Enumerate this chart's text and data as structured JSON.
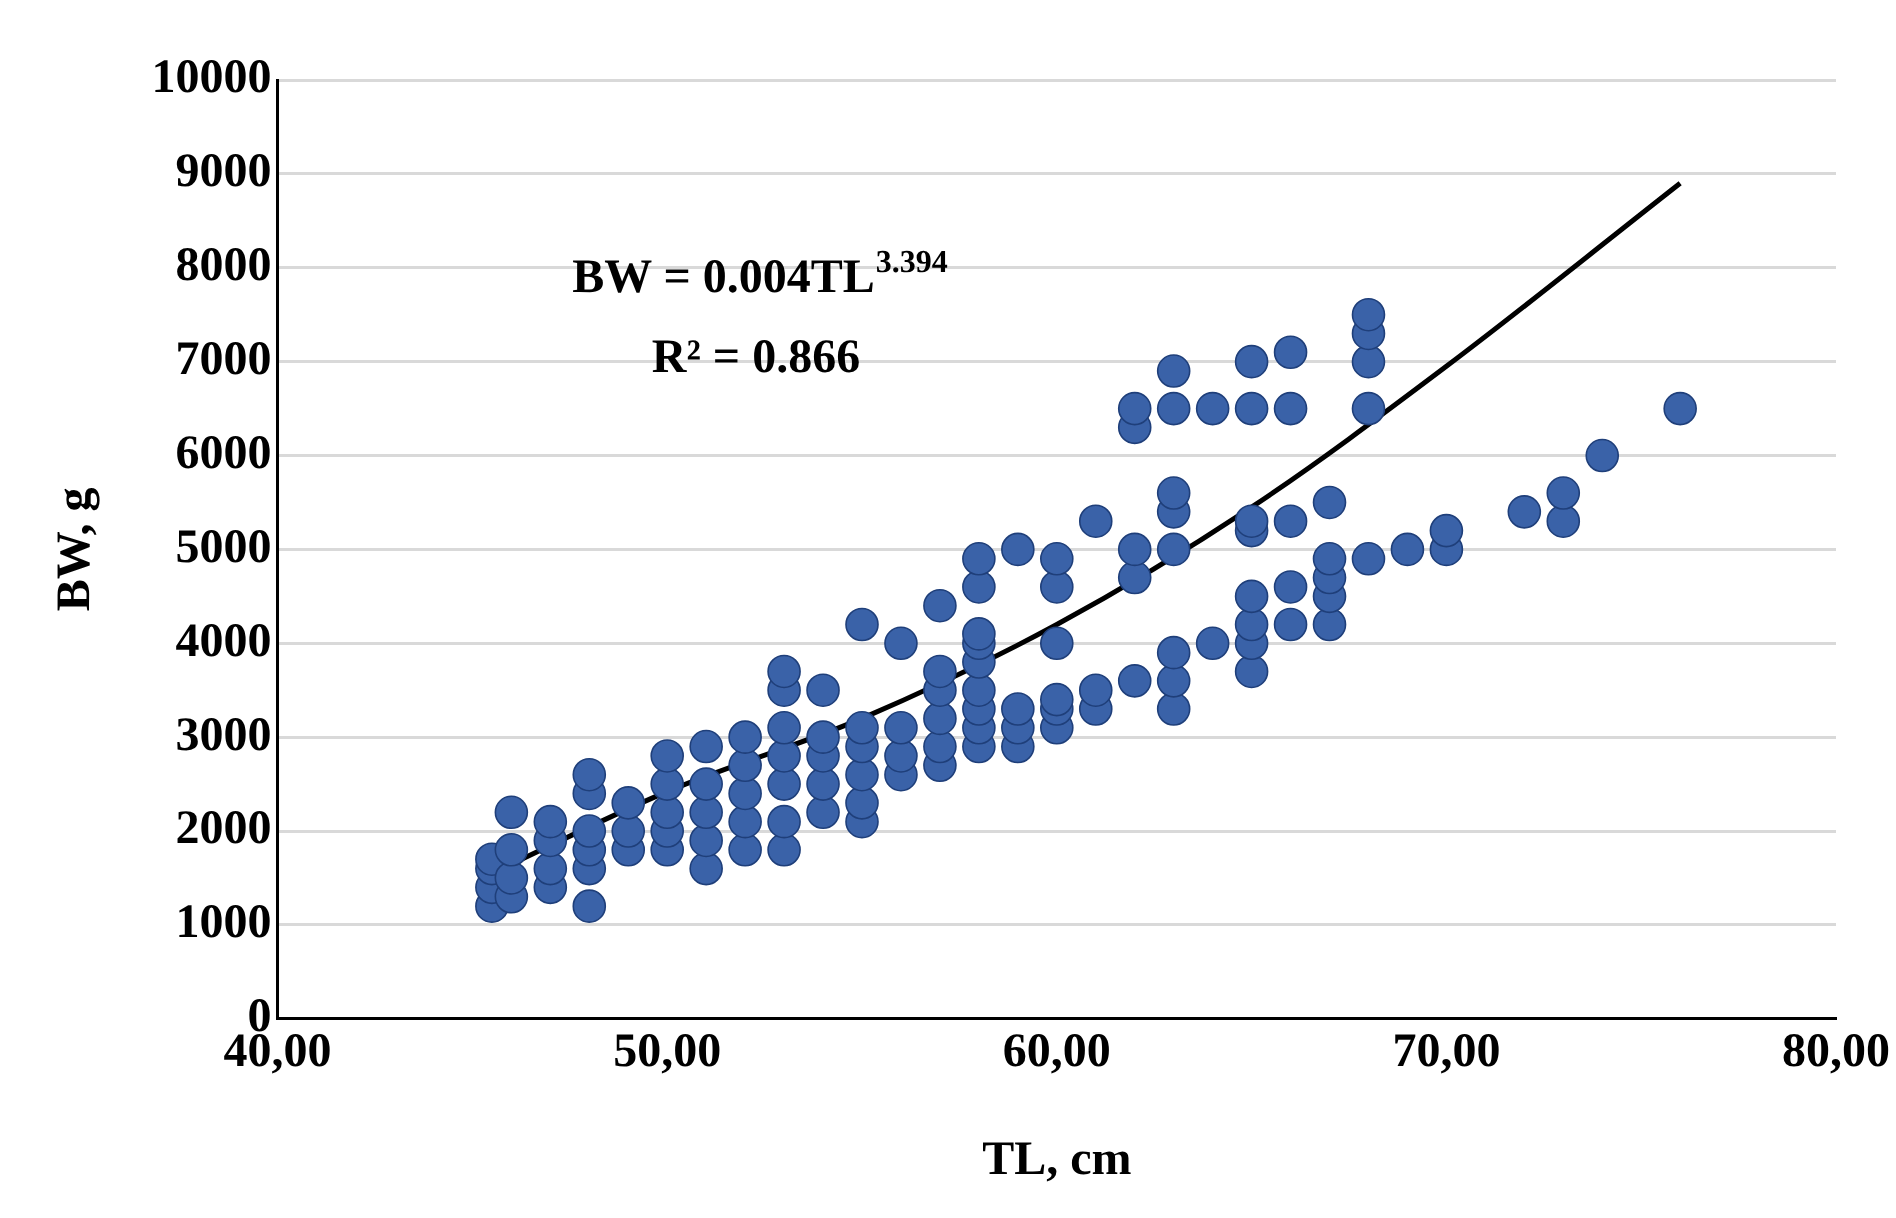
{
  "chart_data": {
    "type": "scatter",
    "xlabel": "TL, cm",
    "ylabel": "BW, g",
    "xlim": [
      40,
      80
    ],
    "xticks": [
      {
        "value": 40,
        "label": "40,00"
      },
      {
        "value": 50,
        "label": "50,00"
      },
      {
        "value": 60,
        "label": "60,00"
      },
      {
        "value": 70,
        "label": "70,00"
      },
      {
        "value": 80,
        "label": "80,00"
      }
    ],
    "ylim": [
      0,
      10000
    ],
    "yticks": [
      0,
      1000,
      2000,
      3000,
      4000,
      5000,
      6000,
      7000,
      8000,
      9000,
      10000
    ],
    "grid": "y",
    "legend": false,
    "marker": "circle",
    "annotations": [
      "BW = 0.004TL$^{3.394}$",
      "R² = 0.866"
    ],
    "series": [
      {
        "color": "#3a62a8",
        "x": [
          45.5,
          45.5,
          45.5,
          45.5,
          46,
          46,
          46,
          46,
          47,
          47,
          47,
          47,
          48,
          48,
          48,
          48,
          48,
          48,
          49,
          49,
          49,
          50,
          50,
          50,
          50,
          50,
          51,
          51,
          51,
          51,
          51,
          52,
          52,
          52,
          52,
          52,
          53,
          53,
          53,
          53,
          53,
          53,
          53,
          54,
          54,
          54,
          54,
          54,
          55,
          55,
          55,
          55,
          55,
          55,
          56,
          56,
          56,
          56,
          57,
          57,
          57,
          57,
          57,
          57,
          58,
          58,
          58,
          58,
          58,
          58,
          58,
          58,
          58,
          59,
          59,
          59,
          59,
          60,
          60,
          60,
          60,
          60,
          60,
          61,
          61,
          61,
          62,
          62,
          62,
          62,
          62,
          63,
          63,
          63,
          63,
          63,
          63,
          63,
          63,
          64,
          64,
          65,
          65,
          65,
          65,
          65,
          65,
          65,
          65,
          66,
          66,
          66,
          66,
          66,
          67,
          67,
          67,
          67,
          67,
          68,
          68,
          68,
          68,
          68,
          69,
          70,
          70,
          72,
          73,
          73,
          74,
          76
        ],
        "values": [
          1200,
          1400,
          1600,
          1700,
          1300,
          1500,
          1800,
          2200,
          1400,
          1600,
          1900,
          2100,
          1200,
          1600,
          1800,
          2000,
          2400,
          2600,
          1800,
          2000,
          2300,
          1800,
          2000,
          2200,
          2500,
          2800,
          1600,
          1900,
          2200,
          2500,
          2900,
          1800,
          2100,
          2400,
          2700,
          3000,
          1800,
          2100,
          2500,
          2800,
          3100,
          3500,
          3700,
          2200,
          2500,
          2800,
          3000,
          3500,
          2100,
          2300,
          2600,
          2900,
          3100,
          4200,
          2600,
          2800,
          3100,
          4000,
          2700,
          2900,
          3200,
          3500,
          3700,
          4400,
          2900,
          3100,
          3300,
          3500,
          3800,
          4000,
          4100,
          4600,
          4900,
          2900,
          3100,
          3300,
          5000,
          3100,
          3300,
          3400,
          4000,
          4600,
          4900,
          3300,
          3500,
          5300,
          3600,
          4700,
          5000,
          6300,
          6500,
          3300,
          3600,
          3900,
          5000,
          5400,
          5600,
          6500,
          6900,
          4000,
          6500,
          3700,
          4000,
          4200,
          4500,
          5200,
          5300,
          6500,
          7000,
          4200,
          4600,
          5300,
          6500,
          7100,
          4200,
          4500,
          4700,
          4900,
          5500,
          4900,
          6500,
          7000,
          7300,
          7500,
          5000,
          5000,
          5200,
          5400,
          5300,
          5600,
          6000,
          6500
        ]
      },
      {
        "type": "line",
        "color": "#000000",
        "marker": "none",
        "x": [
          45.5,
          50,
          55,
          60,
          65,
          70,
          76
        ],
        "values": [
          1550,
          2420,
          3200,
          4200,
          5450,
          6950,
          8900
        ]
      }
    ]
  }
}
